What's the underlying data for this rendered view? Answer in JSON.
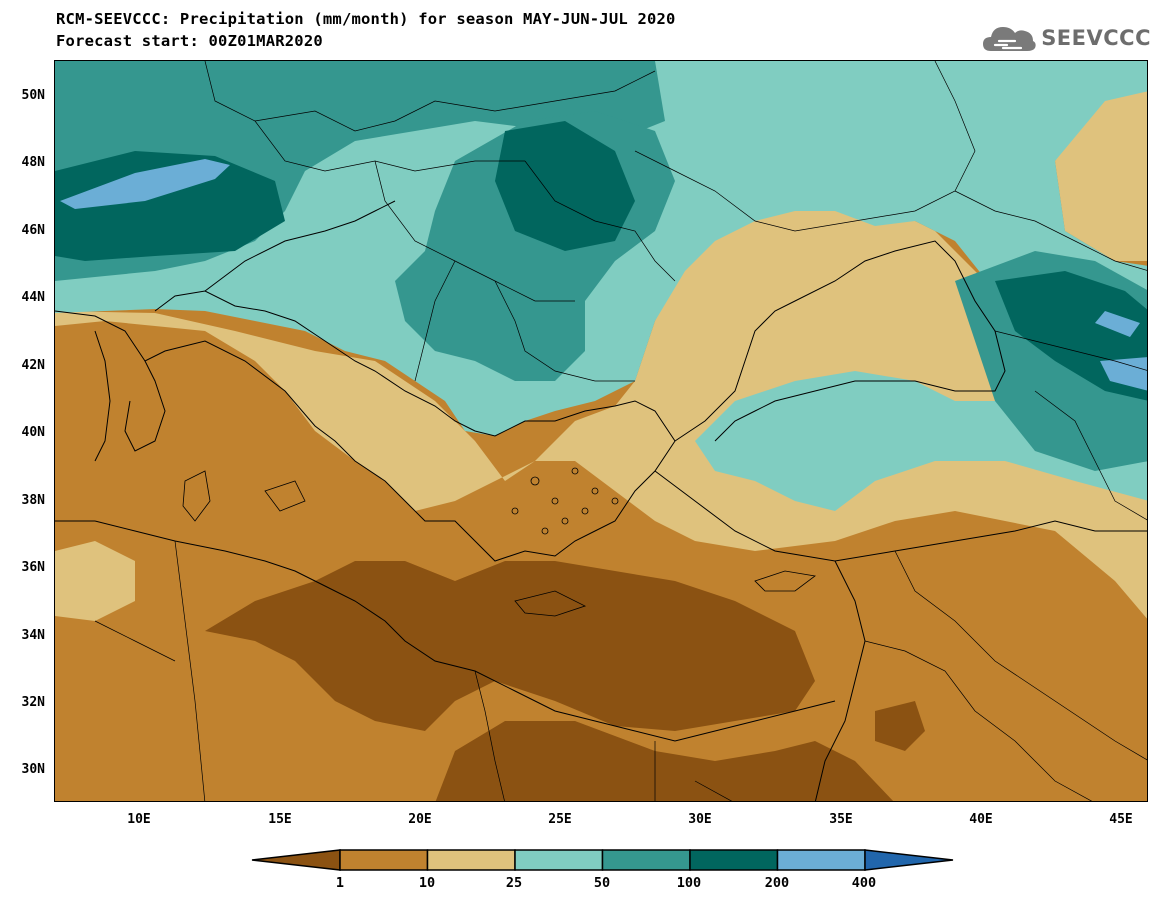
{
  "header": {
    "title_line1": "RCM-SEEVCCC: Precipitation (mm/month) for season MAY-JUN-JUL 2020",
    "title_line2": "Forecast start: 00Z01MAR2020",
    "logo_text": "SEEVCCC",
    "logo_icon": "cloud-icon"
  },
  "map": {
    "lat_ticks": [
      "50N",
      "48N",
      "46N",
      "44N",
      "42N",
      "40N",
      "38N",
      "36N",
      "34N",
      "32N",
      "30N"
    ],
    "lon_ticks": [
      "10E",
      "15E",
      "20E",
      "25E",
      "30E",
      "35E",
      "40E",
      "45E"
    ]
  },
  "colorbar": {
    "labels": [
      "1",
      "10",
      "25",
      "50",
      "100",
      "200",
      "400"
    ],
    "colors": [
      "#8b5212",
      "#c0822f",
      "#dfc27d",
      "#80cdc1",
      "#35978f",
      "#01665e",
      "#6baed6",
      "#2166ac"
    ]
  }
}
